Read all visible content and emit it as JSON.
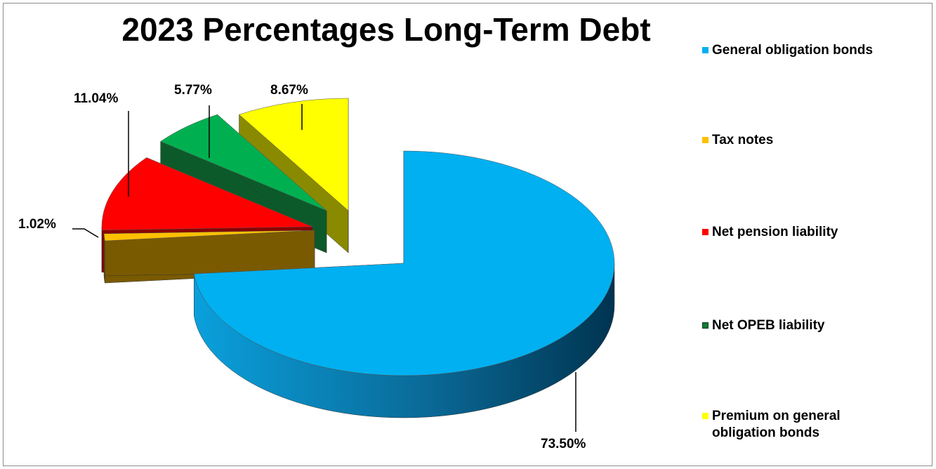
{
  "chart_data": {
    "type": "pie",
    "title": "2023 Percentages Long-Term Debt",
    "slices": [
      {
        "label": "General obligation bonds",
        "value": 73.5,
        "display": "73.50%",
        "color": "#00b0f0"
      },
      {
        "label": "Tax notes",
        "value": 1.02,
        "display": "1.02%",
        "color": "#ffc000"
      },
      {
        "label": "Net pension liability",
        "value": 11.04,
        "display": "11.04%",
        "color": "#ff0000"
      },
      {
        "label": "Net OPEB liability",
        "value": 5.77,
        "display": "5.77%",
        "color": "#00b050"
      },
      {
        "label": "Premium on general obligation bonds",
        "value": 8.67,
        "display": "8.67%",
        "color": "#ffff00"
      }
    ],
    "legend_position": "right",
    "style": "3d-exploded"
  }
}
